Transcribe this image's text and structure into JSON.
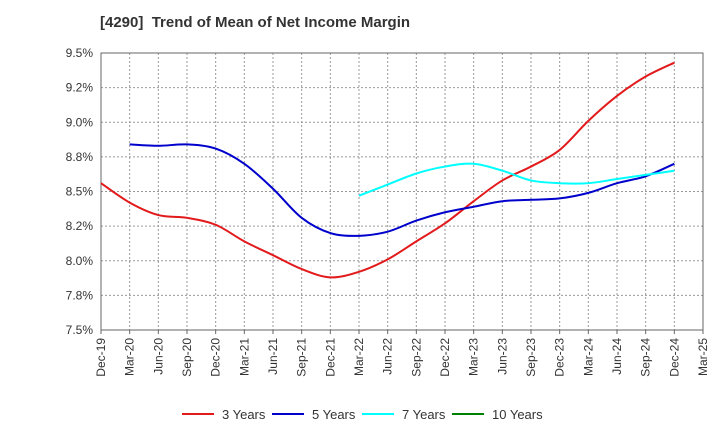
{
  "chart_data": {
    "type": "line",
    "title": "[4290]  Trend of Mean of Net Income Margin",
    "xlabel": "",
    "ylabel": "",
    "grid": true,
    "legend_position": "bottom",
    "x_ticks": [
      "Dec-19",
      "Mar-20",
      "Jun-20",
      "Sep-20",
      "Dec-20",
      "Mar-21",
      "Jun-21",
      "Sep-21",
      "Dec-21",
      "Mar-22",
      "Jun-22",
      "Sep-22",
      "Dec-22",
      "Mar-23",
      "Jun-23",
      "Sep-23",
      "Dec-23",
      "Mar-24",
      "Jun-24",
      "Sep-24",
      "Dec-24",
      "Mar-25"
    ],
    "y_ticks": [
      "7.5%",
      "7.8%",
      "8.0%",
      "8.2%",
      "8.5%",
      "8.8%",
      "9.0%",
      "9.2%",
      "9.5%"
    ],
    "ylim": [
      7.5,
      9.5
    ],
    "series": [
      {
        "name": "3 Years",
        "color": "#e31a1c",
        "values": [
          8.56,
          8.42,
          8.33,
          8.31,
          8.26,
          8.14,
          8.04,
          7.94,
          7.88,
          7.92,
          8.01,
          8.14,
          8.27,
          8.43,
          8.58,
          8.68,
          8.8,
          9.01,
          9.19,
          9.33,
          9.43,
          null
        ]
      },
      {
        "name": "5 Years",
        "color": "#0000cc",
        "values": [
          null,
          8.84,
          8.83,
          8.84,
          8.81,
          8.7,
          8.52,
          8.31,
          8.2,
          8.18,
          8.21,
          8.29,
          8.35,
          8.39,
          8.43,
          8.44,
          8.45,
          8.49,
          8.56,
          8.61,
          8.7,
          null
        ]
      },
      {
        "name": "7 Years",
        "color": "#00ffff",
        "values": [
          null,
          null,
          null,
          null,
          null,
          null,
          null,
          null,
          null,
          8.47,
          8.55,
          8.63,
          8.68,
          8.7,
          8.65,
          8.58,
          8.56,
          8.56,
          8.59,
          8.62,
          8.65,
          null
        ]
      },
      {
        "name": "10 Years",
        "color": "#008000",
        "values": [
          null,
          null,
          null,
          null,
          null,
          null,
          null,
          null,
          null,
          null,
          null,
          null,
          null,
          null,
          null,
          null,
          null,
          null,
          null,
          null,
          null,
          null
        ]
      }
    ]
  }
}
